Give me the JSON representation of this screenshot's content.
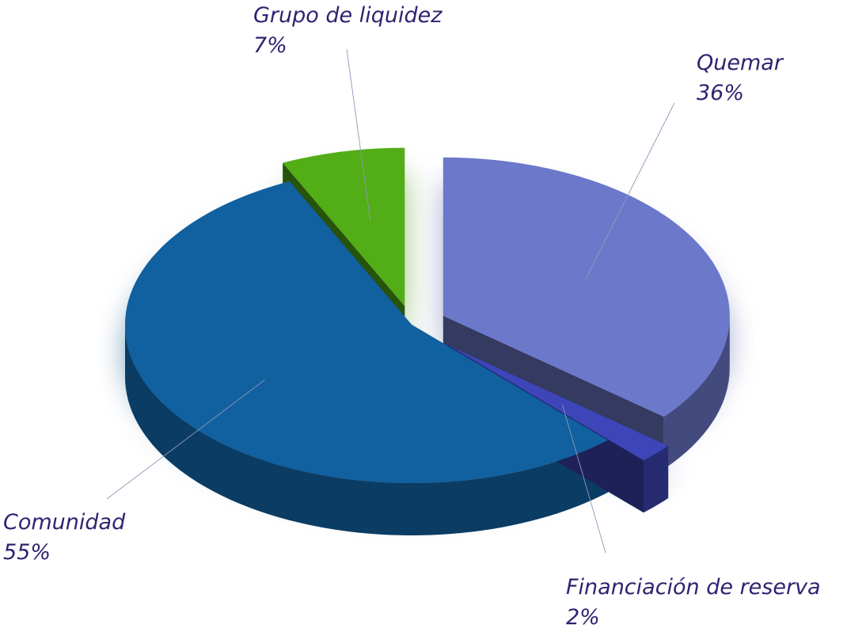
{
  "chart_data": {
    "type": "pie",
    "title": "",
    "slices": [
      {
        "name": "Quemar",
        "percent_label": "36%",
        "value": 36,
        "color": "#6c78c9"
      },
      {
        "name": "Financiación de reserva",
        "percent_label": "2%",
        "value": 2,
        "color": "#3d45b8"
      },
      {
        "name": "Comunidad",
        "percent_label": "55%",
        "value": 55,
        "color": "#11609f"
      },
      {
        "name": "Grupo de liquidez",
        "percent_label": "7%",
        "value": 7,
        "color": "#52ad17"
      }
    ],
    "style": "3d-exploded",
    "legend": "none"
  }
}
